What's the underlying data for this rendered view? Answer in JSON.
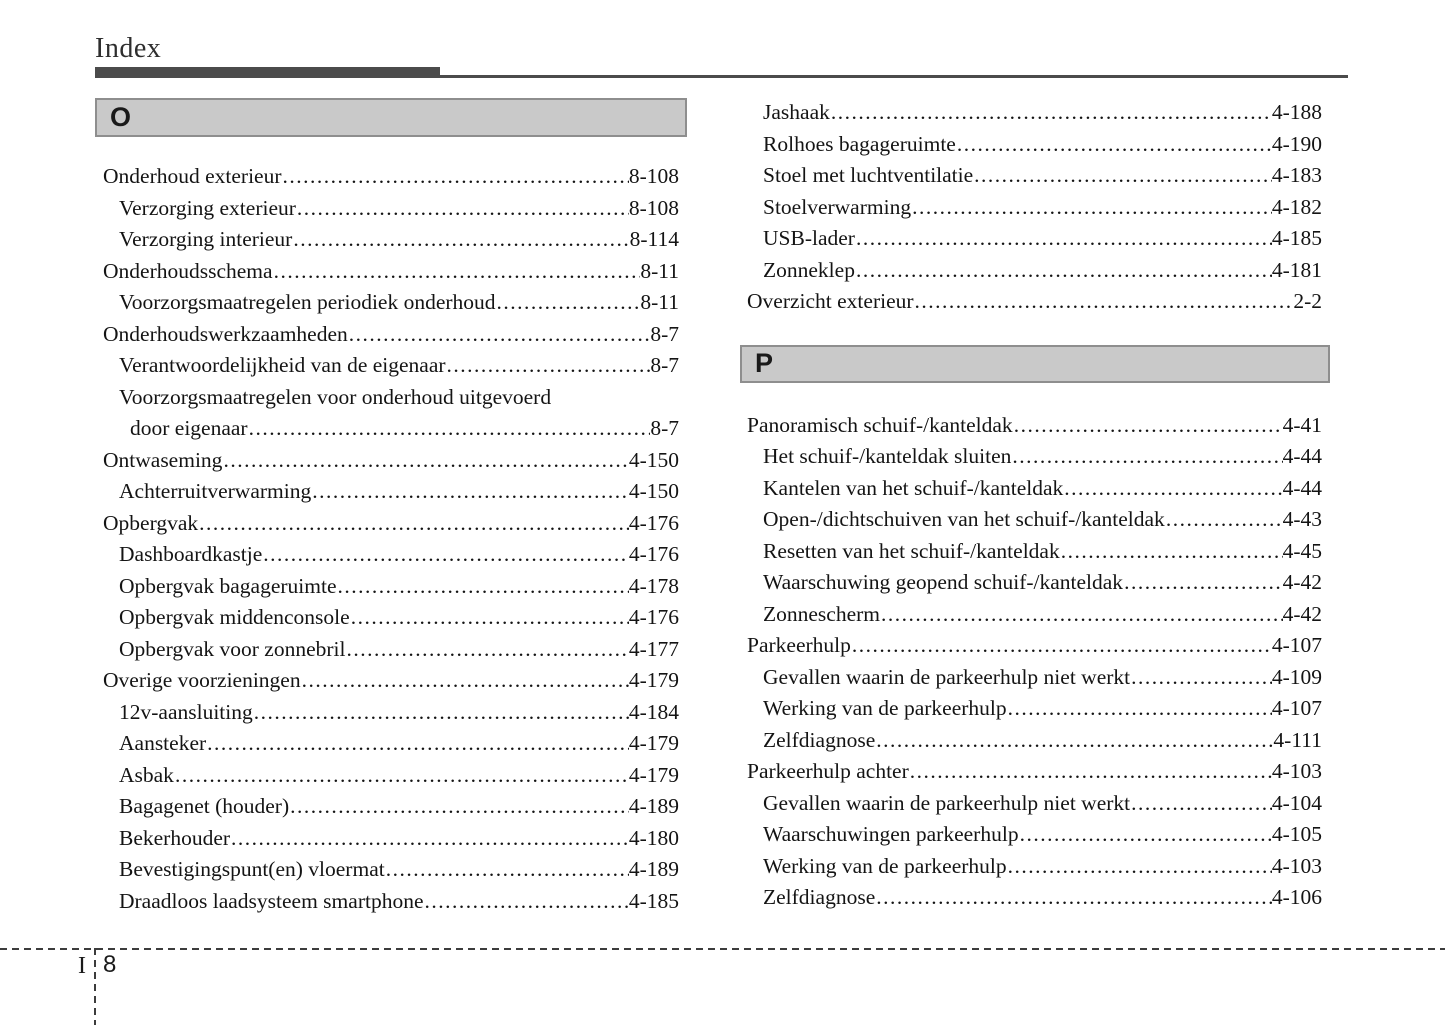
{
  "header": {
    "title": "Index"
  },
  "colors": {
    "title_bar": "#4b4b4b",
    "section_box_bg": "#c9c9c9",
    "section_box_border": "#8e8e8e",
    "text": "#141414"
  },
  "columns": {
    "left": {
      "section_letter": "O",
      "entries": [
        {
          "label": "Onderhoud exterieur",
          "page": "8-108",
          "level": 0
        },
        {
          "label": "Verzorging exterieur",
          "page": "8-108",
          "level": 1
        },
        {
          "label": "Verzorging interieur",
          "page": "8-114",
          "level": 1
        },
        {
          "label": "Onderhoudsschema",
          "page": "8-11",
          "level": 0
        },
        {
          "label": "Voorzorgsmaatregelen periodiek onderhoud",
          "page": "8-11",
          "level": 1
        },
        {
          "label": "Onderhoudswerkzaamheden",
          "page": "8-7",
          "level": 0
        },
        {
          "label": "Verantwoordelijkheid van de eigenaar",
          "page": "8-7",
          "level": 1
        },
        {
          "label": "Voorzorgsmaatregelen voor onderhoud uitgevoerd",
          "page": "",
          "level": 1
        },
        {
          "label": "door eigenaar",
          "page": "8-7",
          "level": 2
        },
        {
          "label": "Ontwaseming",
          "page": "4-150",
          "level": 0
        },
        {
          "label": "Achterruitverwarming",
          "page": "4-150",
          "level": 1
        },
        {
          "label": "Opbergvak",
          "page": "4-176",
          "level": 0
        },
        {
          "label": "Dashboardkastje",
          "page": "4-176",
          "level": 1
        },
        {
          "label": "Opbergvak bagageruimte",
          "page": "4-178",
          "level": 1
        },
        {
          "label": "Opbergvak middenconsole",
          "page": "4-176",
          "level": 1
        },
        {
          "label": "Opbergvak voor zonnebril",
          "page": "4-177",
          "level": 1
        },
        {
          "label": "Overige voorzieningen",
          "page": "4-179",
          "level": 0
        },
        {
          "label": "12v-aansluiting",
          "page": "4-184",
          "level": 1
        },
        {
          "label": "Aansteker",
          "page": "4-179",
          "level": 1
        },
        {
          "label": "Asbak",
          "page": "4-179",
          "level": 1
        },
        {
          "label": "Bagagenet (houder)",
          "page": "4-189",
          "level": 1
        },
        {
          "label": "Bekerhouder",
          "page": "4-180",
          "level": 1
        },
        {
          "label": "Bevestigingspunt(en) vloermat",
          "page": "4-189",
          "level": 1
        },
        {
          "label": "Draadloos laadsysteem smartphone",
          "page": "4-185",
          "level": 1
        }
      ]
    },
    "right": {
      "top_entries": [
        {
          "label": "Jashaak",
          "page": "4-188",
          "level": 1
        },
        {
          "label": "Rolhoes bagageruimte",
          "page": "4-190",
          "level": 1
        },
        {
          "label": "Stoel met luchtventilatie",
          "page": "4-183",
          "level": 1
        },
        {
          "label": "Stoelverwarming",
          "page": "4-182",
          "level": 1
        },
        {
          "label": "USB-lader",
          "page": "4-185",
          "level": 1
        },
        {
          "label": "Zonneklep",
          "page": "4-181",
          "level": 1
        },
        {
          "label": "Overzicht exterieur",
          "page": "2-2",
          "level": 0
        }
      ],
      "section_letter": "P",
      "entries": [
        {
          "label": "Panoramisch schuif-/kanteldak",
          "page": "4-41",
          "level": 0
        },
        {
          "label": "Het schuif-/kanteldak sluiten",
          "page": "4-44",
          "level": 1
        },
        {
          "label": "Kantelen van het schuif-/kanteldak",
          "page": "4-44",
          "level": 1
        },
        {
          "label": "Open-/dichtschuiven van het schuif-/kanteldak",
          "page": "4-43",
          "level": 1
        },
        {
          "label": "Resetten van het schuif-/kanteldak",
          "page": "4-45",
          "level": 1
        },
        {
          "label": "Waarschuwing geopend schuif-/kanteldak",
          "page": "4-42",
          "level": 1
        },
        {
          "label": "Zonnescherm",
          "page": "4-42",
          "level": 1
        },
        {
          "label": "Parkeerhulp",
          "page": "4-107",
          "level": 0
        },
        {
          "label": "Gevallen waarin de parkeerhulp niet werkt",
          "page": "4-109",
          "level": 1
        },
        {
          "label": "Werking van de parkeerhulp",
          "page": "4-107",
          "level": 1
        },
        {
          "label": "Zelfdiagnose",
          "page": "4-111",
          "level": 1
        },
        {
          "label": "Parkeerhulp achter",
          "page": "4-103",
          "level": 0
        },
        {
          "label": "Gevallen waarin de parkeerhulp niet werkt",
          "page": "4-104",
          "level": 1
        },
        {
          "label": "Waarschuwingen parkeerhulp",
          "page": "4-105",
          "level": 1
        },
        {
          "label": "Werking van de parkeerhulp",
          "page": "4-103",
          "level": 1
        },
        {
          "label": "Zelfdiagnose",
          "page": "4-106",
          "level": 1
        }
      ]
    }
  },
  "footer": {
    "chapter_label": "I",
    "page_number": "8"
  }
}
